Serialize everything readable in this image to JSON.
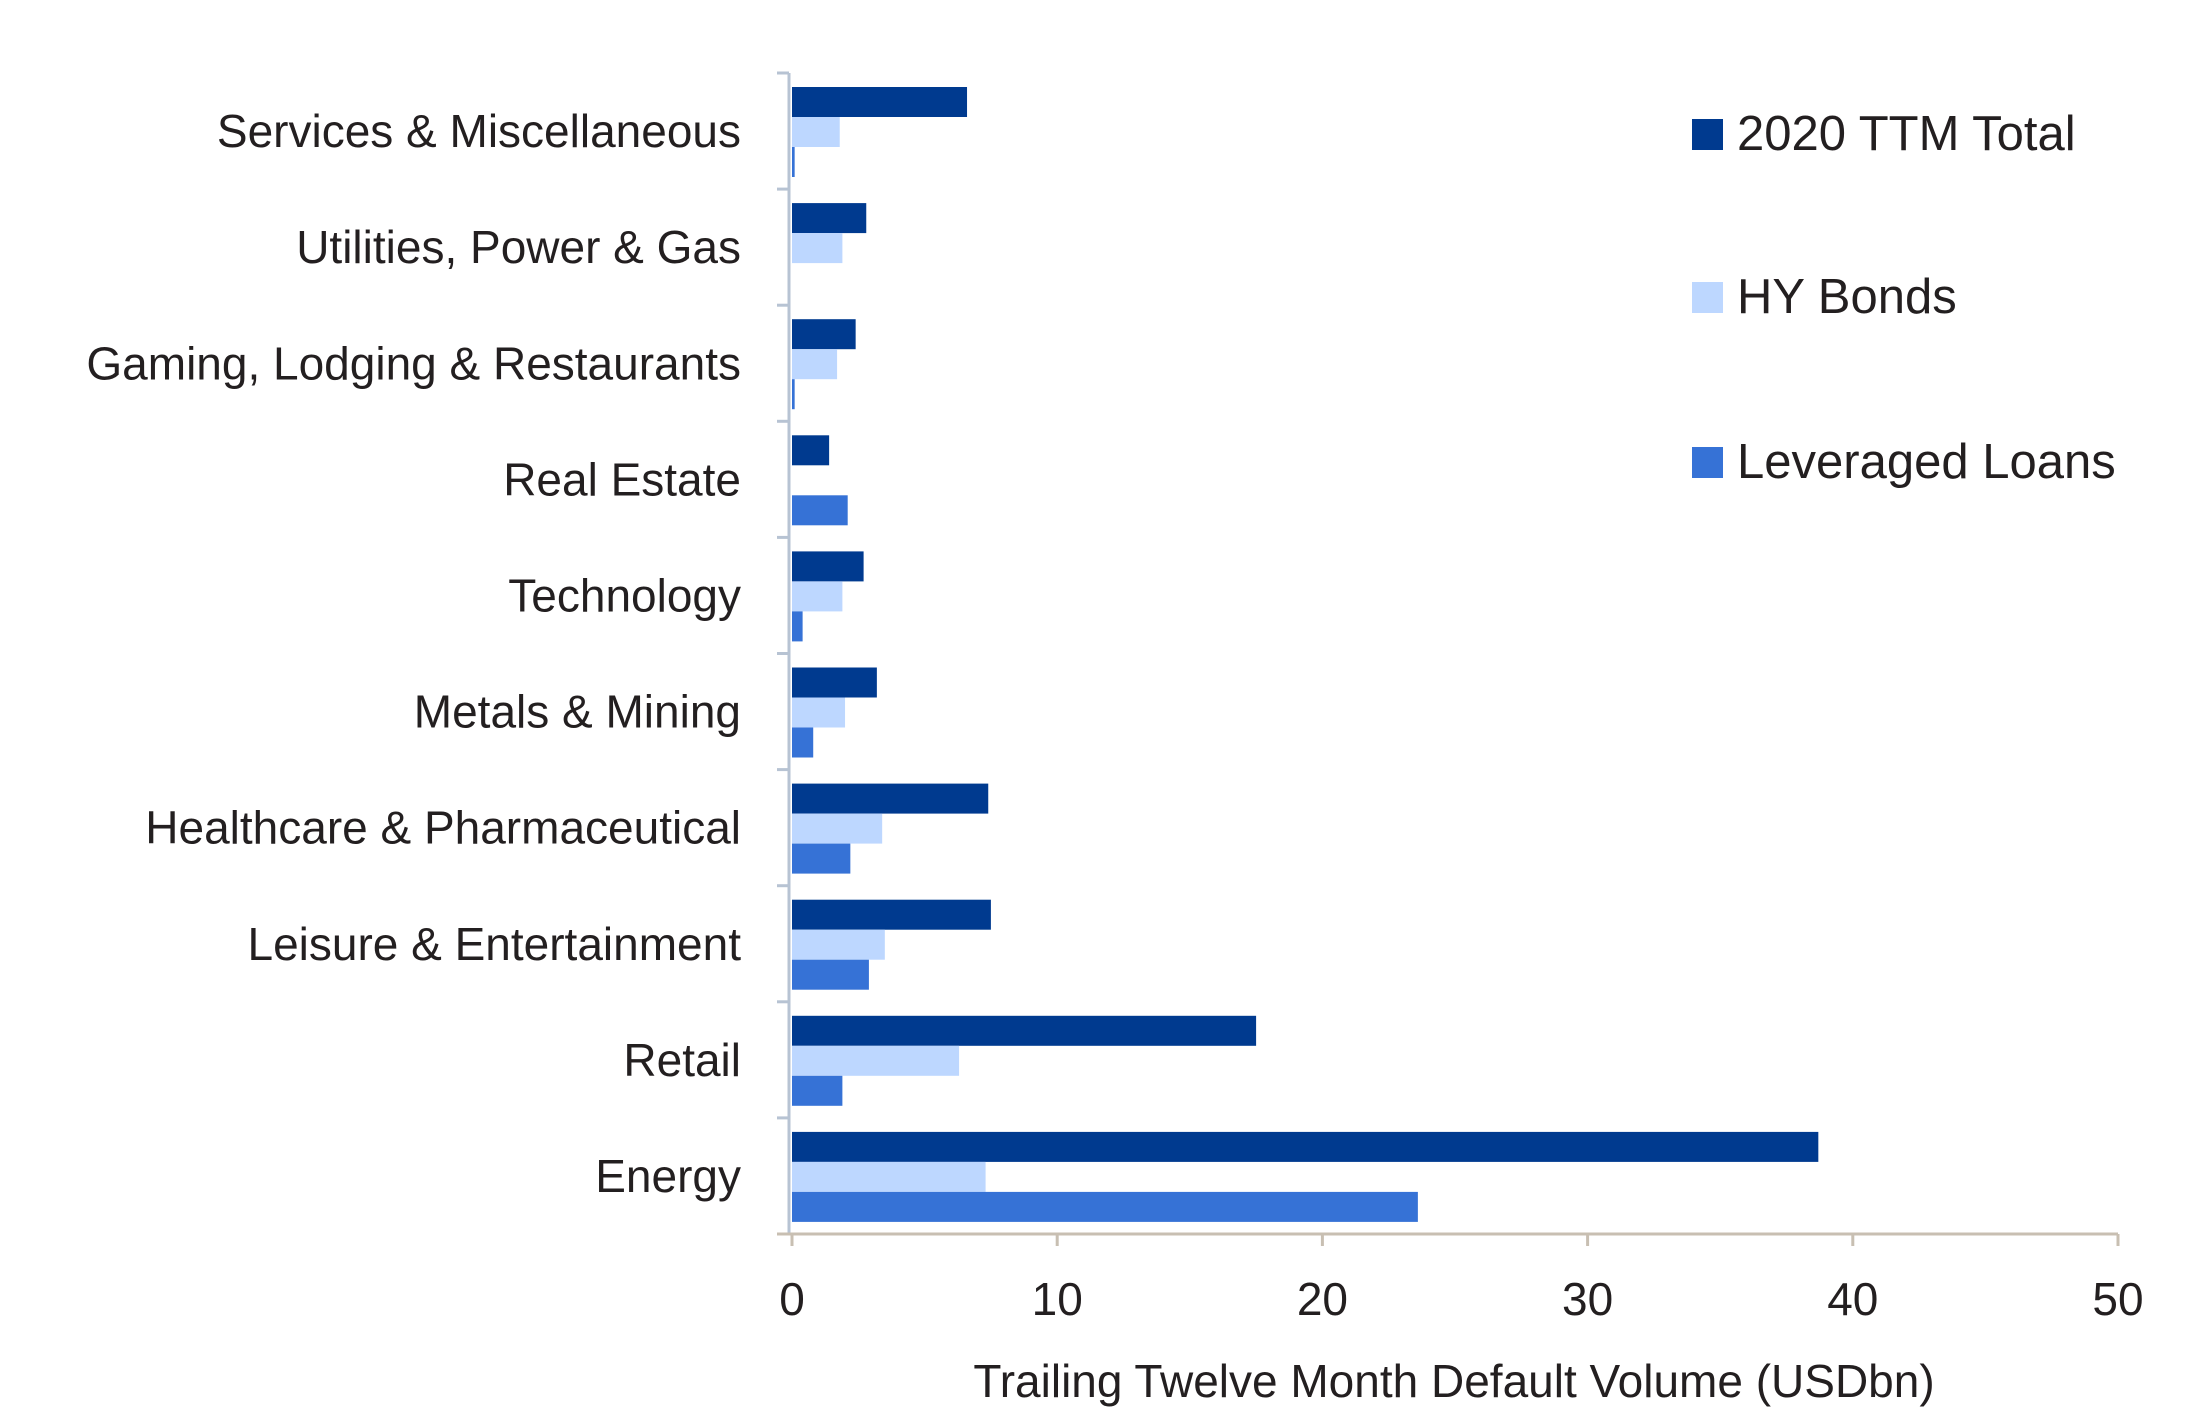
{
  "chart_data": {
    "type": "bar",
    "orientation": "horizontal",
    "categories": [
      "Services & Miscellaneous",
      "Utilities, Power & Gas",
      "Gaming, Lodging & Restaurants",
      "Real Estate",
      "Technology",
      "Metals & Mining",
      "Healthcare & Pharmaceutical",
      "Leisure & Entertainment",
      "Retail",
      "Energy"
    ],
    "series": [
      {
        "name": "2020 TTM Total",
        "color": "#003A8F",
        "values": [
          6.6,
          2.8,
          2.4,
          1.4,
          2.7,
          3.2,
          7.4,
          7.5,
          17.5,
          38.7
        ]
      },
      {
        "name": "HY Bonds",
        "color": "#BDD7FF",
        "values": [
          1.8,
          1.9,
          1.7,
          0,
          1.9,
          2.0,
          3.4,
          3.5,
          6.3,
          7.3
        ]
      },
      {
        "name": "Leveraged Loans",
        "color": "#3672D6",
        "values": [
          0.1,
          0,
          0.1,
          2.1,
          0.4,
          0.8,
          2.2,
          2.9,
          1.9,
          23.6
        ]
      }
    ],
    "xlabel": "Trailing Twelve Month Default Volume (USDbn)",
    "xlim": [
      0,
      50
    ],
    "xticks": [
      0,
      10,
      20,
      30,
      40,
      50
    ],
    "grid": false,
    "legend_position": "top-right"
  }
}
